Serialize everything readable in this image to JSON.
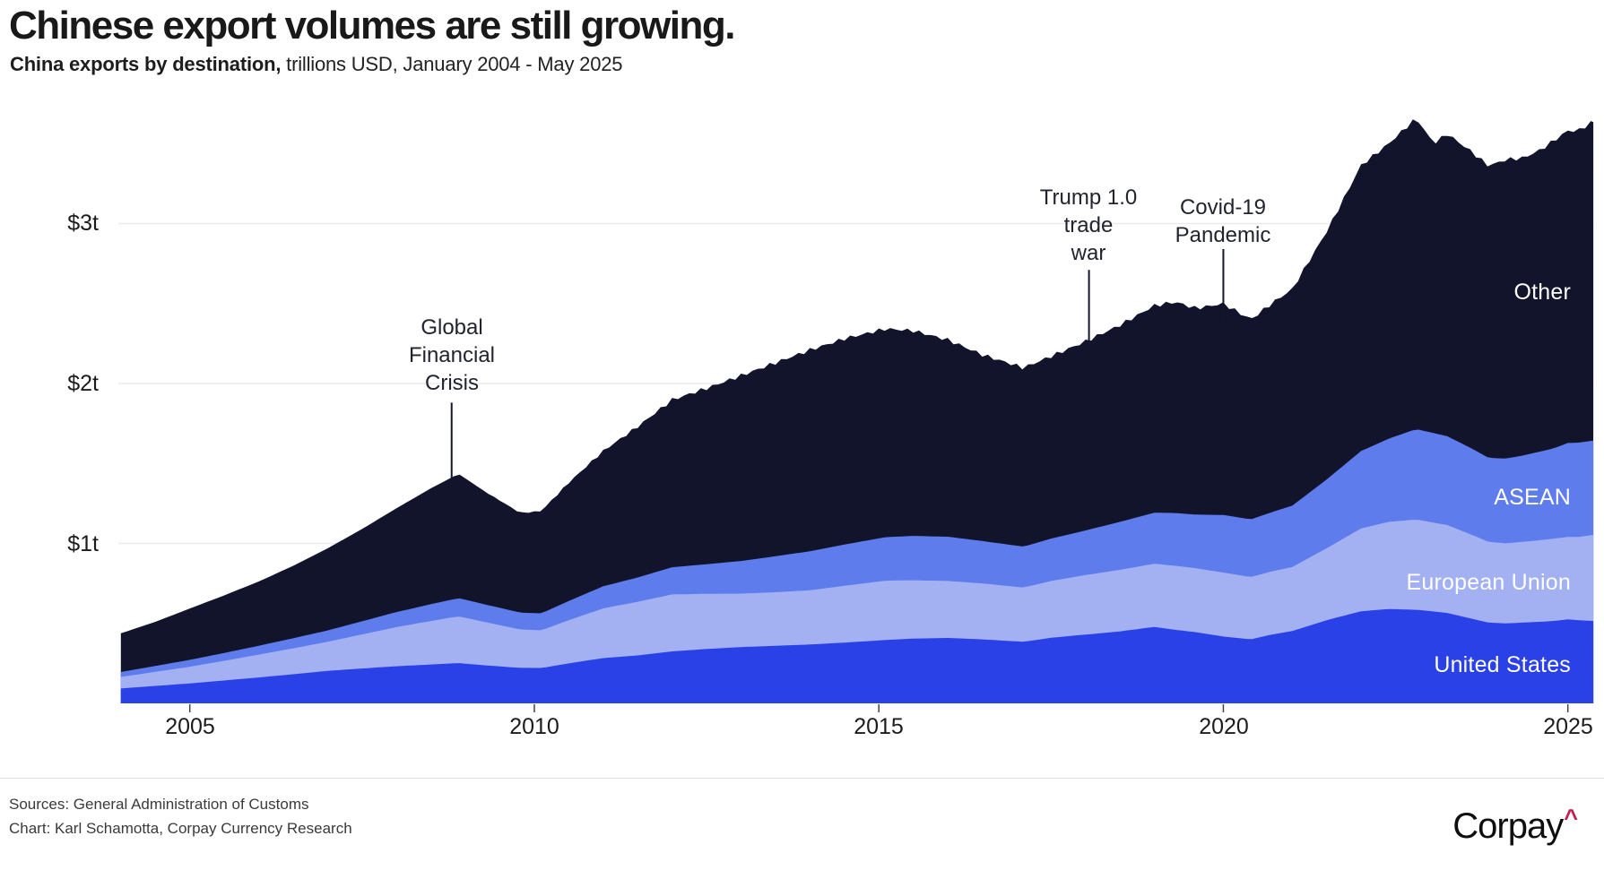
{
  "header": {
    "title": "Chinese export volumes are still growing.",
    "subtitle_bold": "China exports by destination,",
    "subtitle_rest": " trillions USD, January 2004 - May 2025"
  },
  "chart_data": {
    "type": "area",
    "stacked": true,
    "title": "Chinese export volumes are still growing.",
    "subtitle": "China exports by destination, trillions USD, January 2004 - May 2025",
    "x_unit": "year (12-month rolling exports)",
    "x_range": [
      2004.0,
      2025.37
    ],
    "ylim": [
      0,
      3.9
    ],
    "grid": "horizontal",
    "legend_position": "inline-right-on-areas",
    "y_ticks": [
      {
        "value": 1,
        "label": "$1t"
      },
      {
        "value": 2,
        "label": "$2t"
      },
      {
        "value": 3,
        "label": "$3t"
      }
    ],
    "x_ticks": [
      {
        "value": 2005,
        "label": "2005"
      },
      {
        "value": 2010,
        "label": "2010"
      },
      {
        "value": 2015,
        "label": "2015"
      },
      {
        "value": 2020,
        "label": "2020"
      },
      {
        "value": 2025,
        "label": "2025"
      }
    ],
    "x": [
      2004.0,
      2004.5,
      2005.0,
      2005.5,
      2006.0,
      2006.5,
      2007.0,
      2007.5,
      2008.0,
      2008.5,
      2008.9,
      2009.3,
      2009.8,
      2010.1,
      2010.5,
      2011.0,
      2011.5,
      2012.0,
      2012.5,
      2013.0,
      2013.5,
      2014.0,
      2014.5,
      2015.1,
      2015.5,
      2016.0,
      2016.5,
      2017.1,
      2017.5,
      2018.0,
      2018.5,
      2019.0,
      2019.3,
      2019.6,
      2020.0,
      2020.4,
      2020.7,
      2021.0,
      2021.5,
      2022.0,
      2022.4,
      2022.8,
      2023.05,
      2023.25,
      2023.6,
      2023.85,
      2024.1,
      2024.35,
      2024.6,
      2024.8,
      2025.0,
      2025.15,
      2025.37
    ],
    "series": [
      {
        "name": "United States",
        "color": "#2A41E8",
        "values": [
          0.093,
          0.109,
          0.125,
          0.143,
          0.162,
          0.182,
          0.203,
          0.218,
          0.232,
          0.243,
          0.252,
          0.237,
          0.222,
          0.221,
          0.25,
          0.283,
          0.3,
          0.325,
          0.34,
          0.352,
          0.36,
          0.368,
          0.38,
          0.396,
          0.405,
          0.409,
          0.4,
          0.385,
          0.41,
          0.43,
          0.45,
          0.478,
          0.46,
          0.445,
          0.418,
          0.4,
          0.43,
          0.452,
          0.52,
          0.576,
          0.59,
          0.585,
          0.575,
          0.565,
          0.53,
          0.505,
          0.5,
          0.505,
          0.51,
          0.515,
          0.525,
          0.52,
          0.515
        ]
      },
      {
        "name": "European Union",
        "color": "#A3B0F2",
        "values": [
          0.072,
          0.088,
          0.104,
          0.123,
          0.143,
          0.162,
          0.182,
          0.213,
          0.245,
          0.272,
          0.292,
          0.27,
          0.24,
          0.236,
          0.27,
          0.311,
          0.335,
          0.356,
          0.345,
          0.334,
          0.335,
          0.339,
          0.355,
          0.371,
          0.365,
          0.356,
          0.35,
          0.339,
          0.355,
          0.372,
          0.385,
          0.395,
          0.4,
          0.4,
          0.4,
          0.39,
          0.395,
          0.4,
          0.45,
          0.518,
          0.545,
          0.565,
          0.555,
          0.55,
          0.525,
          0.505,
          0.5,
          0.505,
          0.51,
          0.515,
          0.516,
          0.52,
          0.538
        ]
      },
      {
        "name": "ASEAN",
        "color": "#5F7CEC",
        "values": [
          0.031,
          0.037,
          0.043,
          0.049,
          0.055,
          0.063,
          0.071,
          0.082,
          0.094,
          0.105,
          0.114,
          0.11,
          0.105,
          0.106,
          0.12,
          0.138,
          0.152,
          0.17,
          0.185,
          0.204,
          0.225,
          0.244,
          0.258,
          0.272,
          0.277,
          0.277,
          0.265,
          0.256,
          0.265,
          0.279,
          0.3,
          0.319,
          0.33,
          0.335,
          0.36,
          0.36,
          0.37,
          0.384,
          0.43,
          0.484,
          0.52,
          0.565,
          0.56,
          0.555,
          0.54,
          0.525,
          0.53,
          0.54,
          0.555,
          0.565,
          0.587,
          0.59,
          0.59
        ]
      },
      {
        "name": "Other",
        "color": "#12142B",
        "values": [
          0.242,
          0.276,
          0.321,
          0.36,
          0.402,
          0.453,
          0.513,
          0.577,
          0.649,
          0.725,
          0.777,
          0.703,
          0.623,
          0.639,
          0.74,
          0.846,
          0.943,
          1.047,
          1.1,
          1.159,
          1.21,
          1.258,
          1.287,
          1.303,
          1.283,
          1.231,
          1.165,
          1.118,
          1.14,
          1.182,
          1.23,
          1.295,
          1.32,
          1.29,
          1.321,
          1.25,
          1.305,
          1.354,
          1.55,
          1.786,
          1.845,
          1.945,
          1.81,
          1.89,
          1.855,
          1.825,
          1.87,
          1.86,
          1.885,
          1.925,
          1.952,
          1.95,
          1.997
        ]
      }
    ],
    "annotations": [
      {
        "id": "gfc",
        "lines": [
          "Global",
          "Financial",
          "Crisis"
        ],
        "x": 2008.8,
        "line_value_top": 1.88,
        "line_value_bottom": 1.4
      },
      {
        "id": "trump",
        "lines": [
          "Trump 1.0",
          "trade",
          "war"
        ],
        "x": 2018.05,
        "line_value_top": 2.71,
        "line_value_bottom": 2.23
      },
      {
        "id": "covid",
        "lines": [
          "Covid-19",
          "Pandemic"
        ],
        "x": 2020.0,
        "line_value_top": 2.84,
        "line_value_bottom": 2.35
      }
    ],
    "series_labels_on_chart": [
      "Other",
      "ASEAN",
      "European Union",
      "United States"
    ]
  },
  "footer": {
    "source_line": "Sources: General Administration of Customs",
    "credit_line": "Chart: Karl Schamotta, Corpay Currency Research",
    "logo_text": "Corpay",
    "logo_caret": "^",
    "logo_caret_color": "#C41F4A"
  }
}
